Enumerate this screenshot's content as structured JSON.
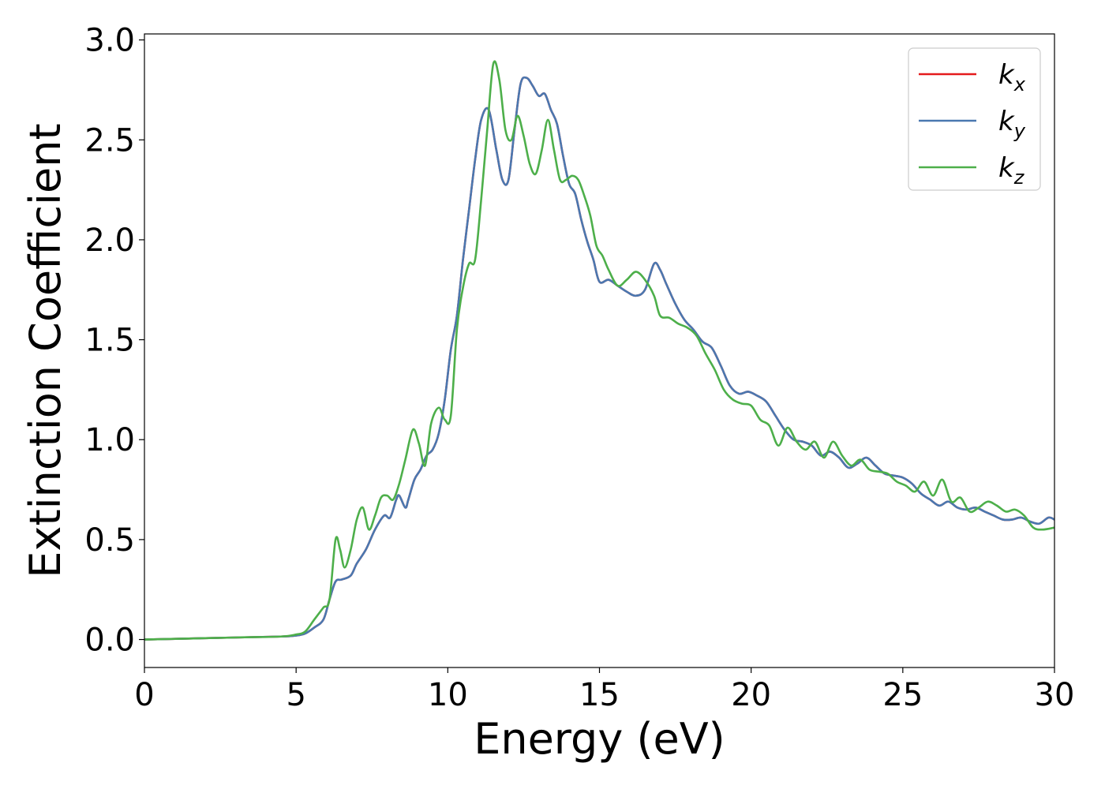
{
  "chart_data": {
    "type": "line",
    "xlabel": "Energy (eV)",
    "ylabel": "Extinction Coefficient",
    "xlim": [
      0,
      30
    ],
    "ylim": [
      -0.14,
      3.03
    ],
    "xticks": [
      0,
      5,
      10,
      15,
      20,
      25,
      30
    ],
    "yticks": [
      0.0,
      0.5,
      1.0,
      1.5,
      2.0,
      2.5,
      3.0
    ],
    "xtick_labels": [
      "0",
      "5",
      "10",
      "15",
      "20",
      "25",
      "30"
    ],
    "ytick_labels": [
      "0.0",
      "0.5",
      "1.0",
      "1.5",
      "2.0",
      "2.5",
      "3.0"
    ],
    "grid": false,
    "legend_position": "top-right",
    "series": [
      {
        "name": "k",
        "subscript": "x",
        "color": "#e41a1c",
        "x": [
          0,
          3,
          4.5,
          5.0,
          5.3,
          5.6,
          5.9,
          6.1,
          6.3,
          6.5,
          6.8,
          7.0,
          7.3,
          7.6,
          7.9,
          8.1,
          8.3,
          8.4,
          8.6,
          8.7,
          8.9,
          9.1,
          9.3,
          9.5,
          9.7,
          9.9,
          10.1,
          10.3,
          10.5,
          10.7,
          10.9,
          11.1,
          11.35,
          11.6,
          11.8,
          12.0,
          12.2,
          12.4,
          12.6,
          12.8,
          13.0,
          13.2,
          13.4,
          13.6,
          13.8,
          14.0,
          14.2,
          14.4,
          14.6,
          14.8,
          15.0,
          15.3,
          15.6,
          15.9,
          16.2,
          16.5,
          16.8,
          17.0,
          17.2,
          17.5,
          17.8,
          18.1,
          18.4,
          18.7,
          19.0,
          19.3,
          19.6,
          19.9,
          20.2,
          20.5,
          20.8,
          21.1,
          21.4,
          21.7,
          22.0,
          22.3,
          22.6,
          22.9,
          23.2,
          23.5,
          23.8,
          24.1,
          24.4,
          24.7,
          25.0,
          25.3,
          25.6,
          25.9,
          26.2,
          26.5,
          26.8,
          27.1,
          27.4,
          27.7,
          28.0,
          28.3,
          28.6,
          28.9,
          29.2,
          29.5,
          29.8,
          30.0
        ],
        "y": [
          0.0,
          0.01,
          0.015,
          0.02,
          0.03,
          0.06,
          0.1,
          0.2,
          0.29,
          0.3,
          0.32,
          0.38,
          0.45,
          0.55,
          0.62,
          0.61,
          0.7,
          0.72,
          0.66,
          0.7,
          0.8,
          0.85,
          0.92,
          0.95,
          1.03,
          1.2,
          1.45,
          1.62,
          1.9,
          2.15,
          2.4,
          2.6,
          2.65,
          2.45,
          2.3,
          2.3,
          2.55,
          2.78,
          2.81,
          2.77,
          2.72,
          2.73,
          2.65,
          2.58,
          2.42,
          2.28,
          2.23,
          2.1,
          1.99,
          1.9,
          1.79,
          1.8,
          1.77,
          1.74,
          1.72,
          1.75,
          1.88,
          1.85,
          1.78,
          1.68,
          1.6,
          1.55,
          1.49,
          1.46,
          1.37,
          1.27,
          1.23,
          1.24,
          1.22,
          1.19,
          1.12,
          1.05,
          1.0,
          0.99,
          0.97,
          0.92,
          0.94,
          0.91,
          0.86,
          0.88,
          0.91,
          0.87,
          0.83,
          0.82,
          0.81,
          0.78,
          0.73,
          0.7,
          0.67,
          0.69,
          0.66,
          0.65,
          0.66,
          0.64,
          0.62,
          0.6,
          0.6,
          0.61,
          0.59,
          0.58,
          0.61,
          0.6
        ]
      },
      {
        "name": "k",
        "subscript": "y",
        "color": "#4a78b0",
        "x": [
          0,
          3,
          4.5,
          5.0,
          5.3,
          5.6,
          5.9,
          6.1,
          6.3,
          6.5,
          6.8,
          7.0,
          7.3,
          7.6,
          7.9,
          8.1,
          8.3,
          8.4,
          8.6,
          8.7,
          8.9,
          9.1,
          9.3,
          9.5,
          9.7,
          9.9,
          10.1,
          10.3,
          10.5,
          10.7,
          10.9,
          11.1,
          11.35,
          11.6,
          11.8,
          12.0,
          12.2,
          12.4,
          12.6,
          12.8,
          13.0,
          13.2,
          13.4,
          13.6,
          13.8,
          14.0,
          14.2,
          14.4,
          14.6,
          14.8,
          15.0,
          15.3,
          15.6,
          15.9,
          16.2,
          16.5,
          16.8,
          17.0,
          17.2,
          17.5,
          17.8,
          18.1,
          18.4,
          18.7,
          19.0,
          19.3,
          19.6,
          19.9,
          20.2,
          20.5,
          20.8,
          21.1,
          21.4,
          21.7,
          22.0,
          22.3,
          22.6,
          22.9,
          23.2,
          23.5,
          23.8,
          24.1,
          24.4,
          24.7,
          25.0,
          25.3,
          25.6,
          25.9,
          26.2,
          26.5,
          26.8,
          27.1,
          27.4,
          27.7,
          28.0,
          28.3,
          28.6,
          28.9,
          29.2,
          29.5,
          29.8,
          30.0
        ],
        "y": [
          0.0,
          0.01,
          0.015,
          0.02,
          0.03,
          0.06,
          0.1,
          0.2,
          0.29,
          0.3,
          0.32,
          0.38,
          0.45,
          0.55,
          0.62,
          0.61,
          0.7,
          0.72,
          0.66,
          0.7,
          0.8,
          0.85,
          0.92,
          0.95,
          1.03,
          1.2,
          1.45,
          1.62,
          1.9,
          2.15,
          2.4,
          2.6,
          2.65,
          2.45,
          2.3,
          2.3,
          2.55,
          2.78,
          2.81,
          2.77,
          2.72,
          2.73,
          2.65,
          2.58,
          2.42,
          2.28,
          2.23,
          2.1,
          1.99,
          1.9,
          1.79,
          1.8,
          1.77,
          1.74,
          1.72,
          1.75,
          1.88,
          1.85,
          1.78,
          1.68,
          1.6,
          1.55,
          1.49,
          1.46,
          1.37,
          1.27,
          1.23,
          1.24,
          1.22,
          1.19,
          1.12,
          1.05,
          1.0,
          0.99,
          0.97,
          0.92,
          0.94,
          0.91,
          0.86,
          0.88,
          0.91,
          0.87,
          0.83,
          0.82,
          0.81,
          0.78,
          0.73,
          0.7,
          0.67,
          0.69,
          0.66,
          0.65,
          0.66,
          0.64,
          0.62,
          0.6,
          0.6,
          0.61,
          0.59,
          0.58,
          0.61,
          0.6
        ]
      },
      {
        "name": "k",
        "subscript": "z",
        "color": "#4daf4a",
        "x": [
          0,
          3,
          4.5,
          5.0,
          5.3,
          5.6,
          5.9,
          6.1,
          6.3,
          6.45,
          6.6,
          6.8,
          7.0,
          7.2,
          7.4,
          7.6,
          7.8,
          8.0,
          8.2,
          8.4,
          8.6,
          8.85,
          9.05,
          9.25,
          9.45,
          9.7,
          9.9,
          10.1,
          10.3,
          10.5,
          10.7,
          10.9,
          11.1,
          11.3,
          11.5,
          11.7,
          11.9,
          12.1,
          12.3,
          12.5,
          12.7,
          12.9,
          13.1,
          13.3,
          13.5,
          13.7,
          13.9,
          14.1,
          14.3,
          14.5,
          14.7,
          14.9,
          15.1,
          15.3,
          15.6,
          15.9,
          16.2,
          16.5,
          16.8,
          17.0,
          17.3,
          17.6,
          17.9,
          18.2,
          18.5,
          18.8,
          19.1,
          19.4,
          19.7,
          20.0,
          20.3,
          20.6,
          20.9,
          21.2,
          21.5,
          21.8,
          22.1,
          22.4,
          22.7,
          23.0,
          23.3,
          23.6,
          23.9,
          24.2,
          24.5,
          24.8,
          25.1,
          25.4,
          25.7,
          26.0,
          26.3,
          26.6,
          26.9,
          27.2,
          27.5,
          27.8,
          28.1,
          28.4,
          28.7,
          29.0,
          29.3,
          29.6,
          30.0
        ],
        "y": [
          0.0,
          0.01,
          0.015,
          0.025,
          0.04,
          0.1,
          0.16,
          0.2,
          0.5,
          0.45,
          0.36,
          0.45,
          0.6,
          0.66,
          0.55,
          0.62,
          0.71,
          0.72,
          0.7,
          0.78,
          0.9,
          1.05,
          0.98,
          0.87,
          1.08,
          1.16,
          1.1,
          1.12,
          1.55,
          1.76,
          1.88,
          1.9,
          2.2,
          2.55,
          2.88,
          2.8,
          2.55,
          2.5,
          2.62,
          2.52,
          2.38,
          2.33,
          2.45,
          2.6,
          2.45,
          2.3,
          2.3,
          2.32,
          2.3,
          2.22,
          2.12,
          1.97,
          1.92,
          1.85,
          1.77,
          1.8,
          1.84,
          1.8,
          1.72,
          1.62,
          1.61,
          1.58,
          1.56,
          1.52,
          1.43,
          1.35,
          1.25,
          1.2,
          1.18,
          1.17,
          1.1,
          1.07,
          0.97,
          1.06,
          0.99,
          0.95,
          0.99,
          0.91,
          0.99,
          0.92,
          0.87,
          0.9,
          0.85,
          0.84,
          0.83,
          0.79,
          0.77,
          0.74,
          0.79,
          0.72,
          0.8,
          0.69,
          0.71,
          0.64,
          0.66,
          0.69,
          0.67,
          0.64,
          0.65,
          0.62,
          0.56,
          0.55,
          0.56
        ]
      }
    ]
  }
}
